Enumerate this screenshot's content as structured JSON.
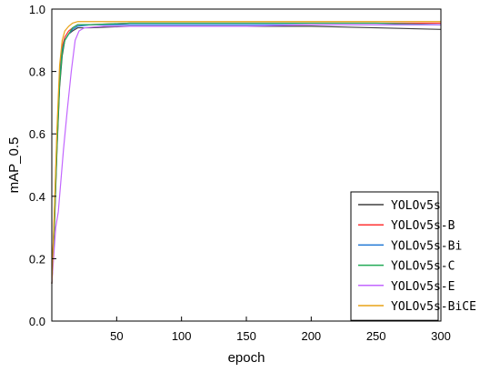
{
  "chart_data": {
    "type": "line",
    "xlabel": "epoch",
    "ylabel": "mAP_0.5",
    "xlim": [
      0,
      300
    ],
    "ylim": [
      0.0,
      1.0
    ],
    "xticks": [
      50,
      100,
      150,
      200,
      250,
      300
    ],
    "yticks": [
      0.0,
      0.2,
      0.4,
      0.6,
      0.8,
      1.0
    ],
    "ytick_labels": [
      "0.0",
      "0.2",
      "0.4",
      "0.6",
      "0.8",
      "1.0"
    ],
    "grid": false,
    "legend_position": "bottom-right",
    "series": [
      {
        "name": "YOLOv5s",
        "color": "#404040",
        "points": [
          [
            0,
            0.12
          ],
          [
            2,
            0.3
          ],
          [
            4,
            0.55
          ],
          [
            6,
            0.75
          ],
          [
            8,
            0.85
          ],
          [
            10,
            0.9
          ],
          [
            13,
            0.92
          ],
          [
            16,
            0.93
          ],
          [
            20,
            0.94
          ],
          [
            30,
            0.94
          ],
          [
            60,
            0.945
          ],
          [
            100,
            0.945
          ],
          [
            150,
            0.945
          ],
          [
            200,
            0.945
          ],
          [
            250,
            0.94
          ],
          [
            300,
            0.935
          ]
        ]
      },
      {
        "name": "YOLOv5s-B",
        "color": "#ff3333",
        "points": [
          [
            0,
            0.12
          ],
          [
            2,
            0.35
          ],
          [
            4,
            0.6
          ],
          [
            6,
            0.8
          ],
          [
            8,
            0.88
          ],
          [
            10,
            0.91
          ],
          [
            13,
            0.93
          ],
          [
            16,
            0.94
          ],
          [
            20,
            0.95
          ],
          [
            30,
            0.95
          ],
          [
            60,
            0.955
          ],
          [
            100,
            0.955
          ],
          [
            150,
            0.955
          ],
          [
            200,
            0.955
          ],
          [
            250,
            0.955
          ],
          [
            300,
            0.955
          ]
        ]
      },
      {
        "name": "YOLOv5s-Bi",
        "color": "#1f77d4",
        "points": [
          [
            0,
            0.12
          ],
          [
            2,
            0.33
          ],
          [
            4,
            0.58
          ],
          [
            6,
            0.78
          ],
          [
            8,
            0.87
          ],
          [
            10,
            0.9
          ],
          [
            13,
            0.92
          ],
          [
            16,
            0.935
          ],
          [
            20,
            0.945
          ],
          [
            30,
            0.95
          ],
          [
            60,
            0.95
          ],
          [
            100,
            0.95
          ],
          [
            150,
            0.95
          ],
          [
            200,
            0.95
          ],
          [
            250,
            0.95
          ],
          [
            300,
            0.95
          ]
        ]
      },
      {
        "name": "YOLOv5s-C",
        "color": "#22aa55",
        "points": [
          [
            0,
            0.12
          ],
          [
            2,
            0.32
          ],
          [
            4,
            0.56
          ],
          [
            6,
            0.76
          ],
          [
            8,
            0.86
          ],
          [
            10,
            0.9
          ],
          [
            13,
            0.92
          ],
          [
            16,
            0.94
          ],
          [
            20,
            0.95
          ],
          [
            30,
            0.95
          ],
          [
            60,
            0.955
          ],
          [
            100,
            0.955
          ],
          [
            150,
            0.955
          ],
          [
            200,
            0.955
          ],
          [
            250,
            0.955
          ],
          [
            300,
            0.95
          ]
        ]
      },
      {
        "name": "YOLOv5s-E",
        "color": "#c266ff",
        "points": [
          [
            0,
            0.12
          ],
          [
            3,
            0.3
          ],
          [
            5,
            0.35
          ],
          [
            7,
            0.45
          ],
          [
            9,
            0.55
          ],
          [
            12,
            0.68
          ],
          [
            15,
            0.8
          ],
          [
            18,
            0.9
          ],
          [
            21,
            0.93
          ],
          [
            25,
            0.94
          ],
          [
            40,
            0.945
          ],
          [
            70,
            0.945
          ],
          [
            100,
            0.945
          ],
          [
            150,
            0.945
          ],
          [
            200,
            0.95
          ],
          [
            250,
            0.95
          ],
          [
            300,
            0.95
          ]
        ]
      },
      {
        "name": "YOLOv5s-BiCE",
        "color": "#e8a317",
        "points": [
          [
            0,
            0.12
          ],
          [
            2,
            0.36
          ],
          [
            4,
            0.62
          ],
          [
            6,
            0.82
          ],
          [
            8,
            0.9
          ],
          [
            10,
            0.93
          ],
          [
            13,
            0.945
          ],
          [
            16,
            0.955
          ],
          [
            20,
            0.96
          ],
          [
            30,
            0.96
          ],
          [
            60,
            0.96
          ],
          [
            100,
            0.96
          ],
          [
            150,
            0.96
          ],
          [
            200,
            0.96
          ],
          [
            250,
            0.96
          ],
          [
            300,
            0.96
          ]
        ]
      }
    ]
  }
}
